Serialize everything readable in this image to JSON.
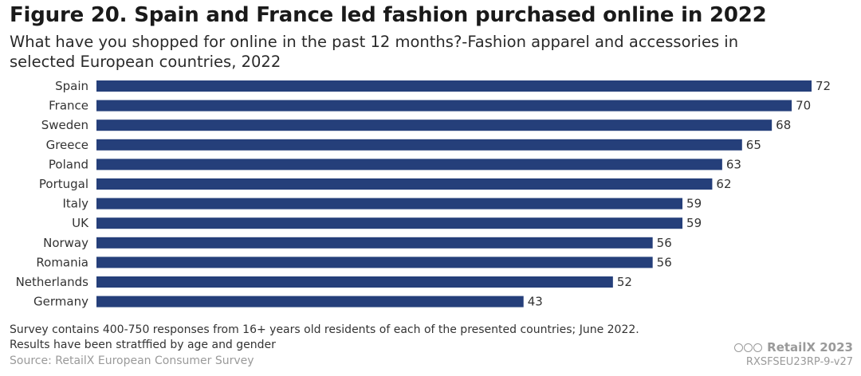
{
  "chart_data": {
    "type": "bar",
    "orientation": "horizontal",
    "title": "Figure 20. Spain and France led fashion purchased online in 2022",
    "subtitle": "What have you shopped for online in the past 12 months?-Fashion apparel and accessories in selected European countries, 2022",
    "categories": [
      "Spain",
      "France",
      "Sweden",
      "Greece",
      "Poland",
      "Portugal",
      "Italy",
      "UK",
      "Norway",
      "Romania",
      "Netherlands",
      "Germany"
    ],
    "values": [
      72,
      70,
      68,
      65,
      63,
      62,
      59,
      59,
      56,
      56,
      52,
      43
    ],
    "xlim": [
      0,
      72
    ],
    "xlabel": "",
    "ylabel": "",
    "grid": false,
    "bar_color": "#253f7a"
  },
  "notes": {
    "line1": "Survey contains 400-750 responses from 16+ years old residents of each of the presented countries; June 2022.",
    "line2": "Results have been stratffied by age and gender"
  },
  "source": "Source: RetailX European Consumer Survey",
  "branding": {
    "name": "RetailX 2023",
    "code": "RXSFSEU23RP-9-v27"
  }
}
